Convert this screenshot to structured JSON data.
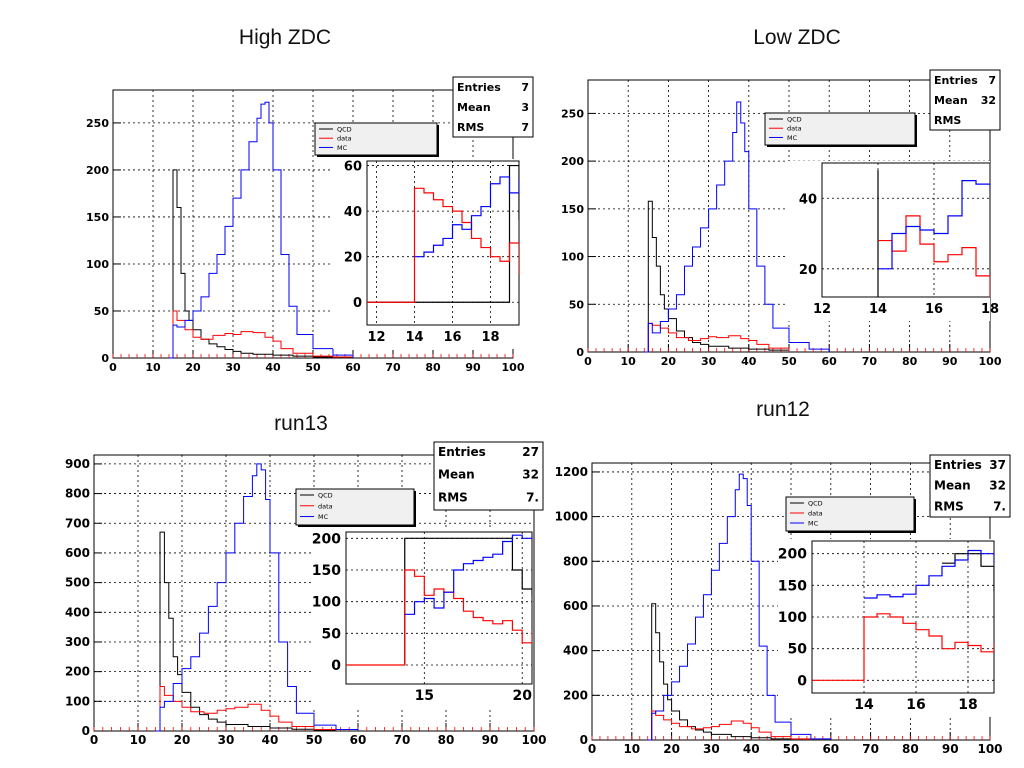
{
  "chart_data": [
    {
      "type": "line",
      "title": "High ZDC",
      "xlim": [
        0,
        100
      ],
      "ylim": [
        0,
        285
      ],
      "x_ticks": [
        0,
        10,
        20,
        30,
        40,
        50,
        60,
        70,
        80,
        90,
        100
      ],
      "y_ticks": [
        0,
        50,
        100,
        150,
        200,
        250
      ],
      "grid": true,
      "legend": {
        "placement": "top-center",
        "entries": [
          "QCD",
          "data",
          "MC"
        ]
      },
      "stats": [
        {
          "label": "Entries",
          "value": "7"
        },
        {
          "label": "Mean",
          "value": "3"
        },
        {
          "label": "RMS",
          "value": "7"
        }
      ],
      "series": [
        {
          "name": "QCD",
          "color": "#000000",
          "x": [
            14,
            15,
            16,
            17,
            18,
            19,
            20,
            22,
            24,
            26,
            28,
            30,
            32,
            35,
            40,
            45,
            50,
            55,
            60
          ],
          "values": [
            0,
            200,
            160,
            90,
            50,
            40,
            30,
            20,
            15,
            12,
            9,
            7,
            5,
            4,
            3,
            2,
            1,
            1,
            0
          ]
        },
        {
          "name": "data",
          "color": "#ff0000",
          "x": [
            14,
            15,
            16,
            18,
            20,
            22,
            25,
            28,
            30,
            32,
            35,
            38,
            40,
            42,
            45,
            50,
            55,
            60
          ],
          "values": [
            0,
            50,
            40,
            30,
            22,
            20,
            24,
            26,
            25,
            28,
            27,
            22,
            18,
            10,
            5,
            2,
            1,
            0
          ]
        },
        {
          "name": "MC",
          "color": "#0000ff",
          "x": [
            14,
            15,
            16,
            18,
            20,
            22,
            24,
            26,
            28,
            30,
            32,
            34,
            36,
            37,
            38,
            39,
            40,
            42,
            44,
            46,
            50,
            55,
            60
          ],
          "values": [
            0,
            35,
            33,
            40,
            50,
            65,
            90,
            110,
            140,
            170,
            200,
            230,
            255,
            270,
            272,
            250,
            200,
            110,
            55,
            25,
            10,
            3,
            0
          ]
        }
      ],
      "inset": {
        "xlim": [
          11.5,
          19.5
        ],
        "ylim": [
          -10,
          62
        ],
        "x_ticks": [
          12,
          14,
          16,
          18
        ],
        "y_ticks": [
          0,
          20,
          40,
          60
        ],
        "series": [
          {
            "name": "QCD",
            "color": "#000000",
            "x": [
              11.5,
              19,
              19.5
            ],
            "values": [
              0,
              60,
              36
            ]
          },
          {
            "name": "data",
            "color": "#ff0000",
            "x": [
              11.5,
              14,
              14,
              14.5,
              15,
              15.5,
              16,
              16.5,
              17,
              17.5,
              18,
              18.5,
              19,
              19.5
            ],
            "values": [
              0,
              0,
              50,
              48,
              45,
              42,
              40,
              35,
              28,
              24,
              20,
              18,
              26,
              12
            ]
          },
          {
            "name": "MC",
            "color": "#0000ff",
            "x": [
              14,
              14.5,
              15,
              15.5,
              16,
              16.5,
              17,
              17.5,
              18,
              18.5,
              19,
              19.5
            ],
            "values": [
              20,
              22,
              25,
              28,
              34,
              32,
              38,
              42,
              52,
              55,
              48,
              54
            ]
          }
        ]
      }
    },
    {
      "type": "line",
      "title": "Low ZDC",
      "xlim": [
        0,
        100
      ],
      "ylim": [
        0,
        285
      ],
      "x_ticks": [
        0,
        10,
        20,
        30,
        40,
        50,
        60,
        70,
        80,
        90,
        100
      ],
      "y_ticks": [
        0,
        50,
        100,
        150,
        200,
        250
      ],
      "grid": true,
      "legend": {
        "placement": "top-center",
        "entries": [
          "QCD",
          "data",
          "MC"
        ]
      },
      "stats": [
        {
          "label": "Entries",
          "value": "7"
        },
        {
          "label": "Mean",
          "value": "32"
        },
        {
          "label": "RMS",
          "value": ""
        }
      ],
      "series": [
        {
          "name": "QCD",
          "color": "#000000",
          "x": [
            14,
            15,
            16,
            17,
            18,
            19,
            20,
            22,
            24,
            26,
            28,
            30,
            35,
            40,
            45,
            50
          ],
          "values": [
            0,
            158,
            120,
            90,
            60,
            45,
            35,
            22,
            15,
            10,
            8,
            6,
            4,
            3,
            2,
            0
          ]
        },
        {
          "name": "data",
          "color": "#ff0000",
          "x": [
            14,
            15,
            16,
            18,
            20,
            22,
            25,
            28,
            30,
            32,
            35,
            38,
            40,
            42,
            45,
            50
          ],
          "values": [
            0,
            30,
            28,
            25,
            20,
            15,
            12,
            14,
            16,
            15,
            17,
            14,
            12,
            8,
            4,
            0
          ]
        },
        {
          "name": "MC",
          "color": "#0000ff",
          "x": [
            14,
            15,
            16,
            18,
            20,
            22,
            24,
            26,
            28,
            30,
            32,
            34,
            36,
            37,
            38,
            39,
            40,
            42,
            44,
            46,
            50,
            55,
            60
          ],
          "values": [
            0,
            30,
            20,
            32,
            45,
            60,
            90,
            110,
            130,
            150,
            175,
            200,
            230,
            262,
            240,
            210,
            150,
            90,
            50,
            25,
            10,
            3,
            0
          ]
        }
      ],
      "inset": {
        "xlim": [
          12,
          18
        ],
        "ylim": [
          12,
          50
        ],
        "x_ticks": [
          12,
          14,
          16,
          18
        ],
        "y_ticks": [
          20,
          40
        ],
        "series": [
          {
            "name": "QCD",
            "color": "#000000",
            "x": [
              14,
              14
            ],
            "values": [
              12,
              48
            ]
          },
          {
            "name": "data",
            "color": "#ff0000",
            "x": [
              14,
              14.5,
              15,
              15.5,
              16,
              16.5,
              17,
              17.5,
              18
            ],
            "values": [
              28,
              25,
              35,
              27,
              22,
              24,
              26,
              18,
              12
            ]
          },
          {
            "name": "MC",
            "color": "#0000ff",
            "x": [
              14,
              14.5,
              15,
              15.5,
              16,
              16.5,
              17,
              17.5,
              18
            ],
            "values": [
              20,
              30,
              32,
              31,
              30,
              35,
              45,
              44,
              42
            ]
          }
        ]
      }
    },
    {
      "type": "line",
      "title": "run13",
      "xlim": [
        0,
        100
      ],
      "ylim": [
        0,
        930
      ],
      "x_ticks": [
        0,
        10,
        20,
        30,
        40,
        50,
        60,
        70,
        80,
        90,
        100
      ],
      "y_ticks": [
        0,
        100,
        200,
        300,
        400,
        500,
        600,
        700,
        800,
        900
      ],
      "grid": true,
      "legend": {
        "placement": "top-center",
        "entries": [
          "QCD",
          "data",
          "MC"
        ]
      },
      "stats": [
        {
          "label": "Entries",
          "value": "27"
        },
        {
          "label": "Mean",
          "value": "32"
        },
        {
          "label": "RMS",
          "value": "7."
        }
      ],
      "series": [
        {
          "name": "QCD",
          "color": "#000000",
          "x": [
            14,
            15,
            16,
            17,
            18,
            19,
            20,
            22,
            24,
            26,
            28,
            30,
            35,
            40,
            45,
            50,
            55
          ],
          "values": [
            0,
            670,
            500,
            380,
            250,
            190,
            130,
            80,
            55,
            40,
            30,
            22,
            15,
            10,
            6,
            3,
            0
          ]
        },
        {
          "name": "data",
          "color": "#ff0000",
          "x": [
            14,
            15,
            16,
            18,
            20,
            22,
            25,
            28,
            30,
            32,
            35,
            38,
            40,
            42,
            45,
            50,
            55
          ],
          "values": [
            0,
            150,
            120,
            100,
            80,
            65,
            60,
            70,
            75,
            80,
            90,
            70,
            50,
            30,
            15,
            5,
            0
          ]
        },
        {
          "name": "MC",
          "color": "#0000ff",
          "x": [
            14,
            15,
            16,
            18,
            20,
            22,
            24,
            26,
            28,
            30,
            32,
            34,
            36,
            37,
            38,
            39,
            40,
            42,
            44,
            46,
            50,
            55,
            60
          ],
          "values": [
            0,
            80,
            100,
            160,
            210,
            250,
            330,
            420,
            500,
            600,
            700,
            790,
            860,
            900,
            880,
            780,
            600,
            300,
            150,
            60,
            20,
            5,
            0
          ]
        }
      ],
      "inset": {
        "xlim": [
          11,
          20.5
        ],
        "ylim": [
          -30,
          210
        ],
        "x_ticks": [
          15,
          20
        ],
        "y_ticks": [
          0,
          50,
          100,
          150,
          200
        ],
        "series": [
          {
            "name": "QCD",
            "color": "#000000",
            "x": [
              14,
              14,
              19,
              19.5,
              20,
              20.5
            ],
            "values": [
              0,
              200,
              200,
              150,
              120,
              110
            ]
          },
          {
            "name": "data",
            "color": "#ff0000",
            "x": [
              11,
              14,
              14,
              14.5,
              15,
              15.5,
              16,
              16.5,
              17,
              17.5,
              18,
              18.5,
              19,
              19.5,
              20,
              20.5
            ],
            "values": [
              0,
              0,
              150,
              140,
              110,
              120,
              115,
              105,
              85,
              75,
              70,
              65,
              70,
              55,
              35,
              55
            ]
          },
          {
            "name": "MC",
            "color": "#0000ff",
            "x": [
              14,
              14.5,
              15,
              15.5,
              16,
              16.5,
              17,
              17.5,
              18,
              18.5,
              19,
              19.5,
              20,
              20.5
            ],
            "values": [
              80,
              100,
              105,
              90,
              115,
              150,
              160,
              165,
              170,
              175,
              195,
              205,
              200,
              205
            ]
          }
        ]
      }
    },
    {
      "type": "line",
      "title": "run12",
      "xlim": [
        0,
        100
      ],
      "ylim": [
        0,
        1240
      ],
      "x_ticks": [
        0,
        10,
        20,
        30,
        40,
        50,
        60,
        70,
        80,
        90,
        100
      ],
      "y_ticks": [
        0,
        200,
        400,
        600,
        800,
        1000,
        1200
      ],
      "grid": true,
      "legend": {
        "placement": "top-center",
        "entries": [
          "QCD",
          "data",
          "MC"
        ]
      },
      "stats": [
        {
          "label": "Entries",
          "value": "37"
        },
        {
          "label": "Mean",
          "value": "32"
        },
        {
          "label": "RMS",
          "value": "7."
        }
      ],
      "series": [
        {
          "name": "QCD",
          "color": "#000000",
          "x": [
            14,
            15,
            16,
            17,
            18,
            19,
            20,
            22,
            24,
            26,
            28,
            30,
            35,
            40,
            45,
            50
          ],
          "values": [
            0,
            610,
            480,
            350,
            250,
            180,
            130,
            90,
            60,
            45,
            35,
            25,
            15,
            10,
            5,
            0
          ]
        },
        {
          "name": "data",
          "color": "#ff0000",
          "x": [
            14,
            15,
            16,
            18,
            20,
            22,
            25,
            28,
            30,
            32,
            35,
            38,
            40,
            42,
            45,
            50,
            55
          ],
          "values": [
            0,
            130,
            110,
            90,
            75,
            60,
            50,
            55,
            60,
            70,
            85,
            75,
            55,
            35,
            15,
            5,
            0
          ]
        },
        {
          "name": "MC",
          "color": "#0000ff",
          "x": [
            14,
            15,
            16,
            18,
            20,
            22,
            24,
            26,
            28,
            30,
            32,
            34,
            36,
            37,
            38,
            39,
            40,
            42,
            44,
            46,
            50,
            55,
            60
          ],
          "values": [
            0,
            120,
            130,
            200,
            260,
            330,
            430,
            550,
            650,
            760,
            880,
            1000,
            1120,
            1190,
            1170,
            1050,
            800,
            420,
            200,
            80,
            25,
            5,
            0
          ]
        }
      ],
      "inset": {
        "xlim": [
          12,
          19
        ],
        "ylim": [
          -20,
          220
        ],
        "x_ticks": [
          14,
          16,
          18
        ],
        "y_ticks": [
          0,
          50,
          100,
          150,
          200
        ],
        "series": [
          {
            "name": "QCD",
            "color": "#000000",
            "x": [
              17,
              17.5,
              18,
              18.5,
              19
            ],
            "values": [
              185,
              200,
              200,
              180,
              140
            ]
          },
          {
            "name": "data",
            "color": "#ff0000",
            "x": [
              12,
              14,
              14,
              14.5,
              15,
              15.5,
              16,
              16.5,
              17,
              17.5,
              18,
              18.5,
              19
            ],
            "values": [
              0,
              0,
              100,
              105,
              100,
              90,
              80,
              70,
              50,
              60,
              55,
              45,
              60
            ]
          },
          {
            "name": "MC",
            "color": "#0000ff",
            "x": [
              14,
              14.5,
              15,
              15.5,
              16,
              16.5,
              17,
              17.5,
              18,
              18.5,
              19
            ],
            "values": [
              130,
              135,
              132,
              136,
              150,
              165,
              180,
              190,
              205,
              200,
              185
            ]
          }
        ]
      }
    }
  ]
}
